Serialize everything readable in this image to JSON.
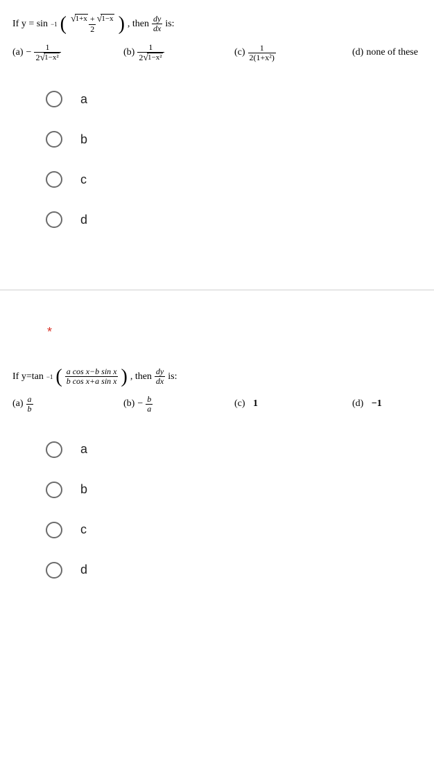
{
  "q1": {
    "stem_prefix": "If  y = sin",
    "stem_sup": "−1",
    "stem_then": ", then",
    "stem_is": "is:",
    "dy": "dy",
    "dx": "dx",
    "top_radicand1": "1+x",
    "top_plus": "+",
    "top_radicand2": "1−x",
    "top_denom": "2",
    "answers": {
      "a": {
        "label": "(a)",
        "sign": "−",
        "num": "1",
        "den_coef": "2",
        "den_rad": "1−x²"
      },
      "b": {
        "label": "(b)",
        "num": "1",
        "den_coef": "2",
        "den_rad": "1−x²"
      },
      "c": {
        "label": "(c)",
        "num": "1",
        "den": "2(1+x²)"
      },
      "d": {
        "label": "(d)",
        "text": "none of these"
      }
    },
    "options": [
      "a",
      "b",
      "c",
      "d"
    ]
  },
  "required_marker": "*",
  "q2": {
    "stem_prefix": "If  y=tan",
    "stem_sup": "−1",
    "stem_then": ", then",
    "stem_is": "is:",
    "dy": "dy",
    "dx": "dx",
    "frac_top": "a cos x−b sin x",
    "frac_bot": "b cos x+a sin x",
    "answers": {
      "a": {
        "label": "(a)",
        "num": "a",
        "den": "b"
      },
      "b": {
        "label": "(b)",
        "sign": "−",
        "num": "b",
        "den": "a"
      },
      "c": {
        "label": "(c)",
        "text": "1"
      },
      "d": {
        "label": "(d)",
        "text": "−1"
      }
    },
    "options": [
      "a",
      "b",
      "c",
      "d"
    ]
  }
}
